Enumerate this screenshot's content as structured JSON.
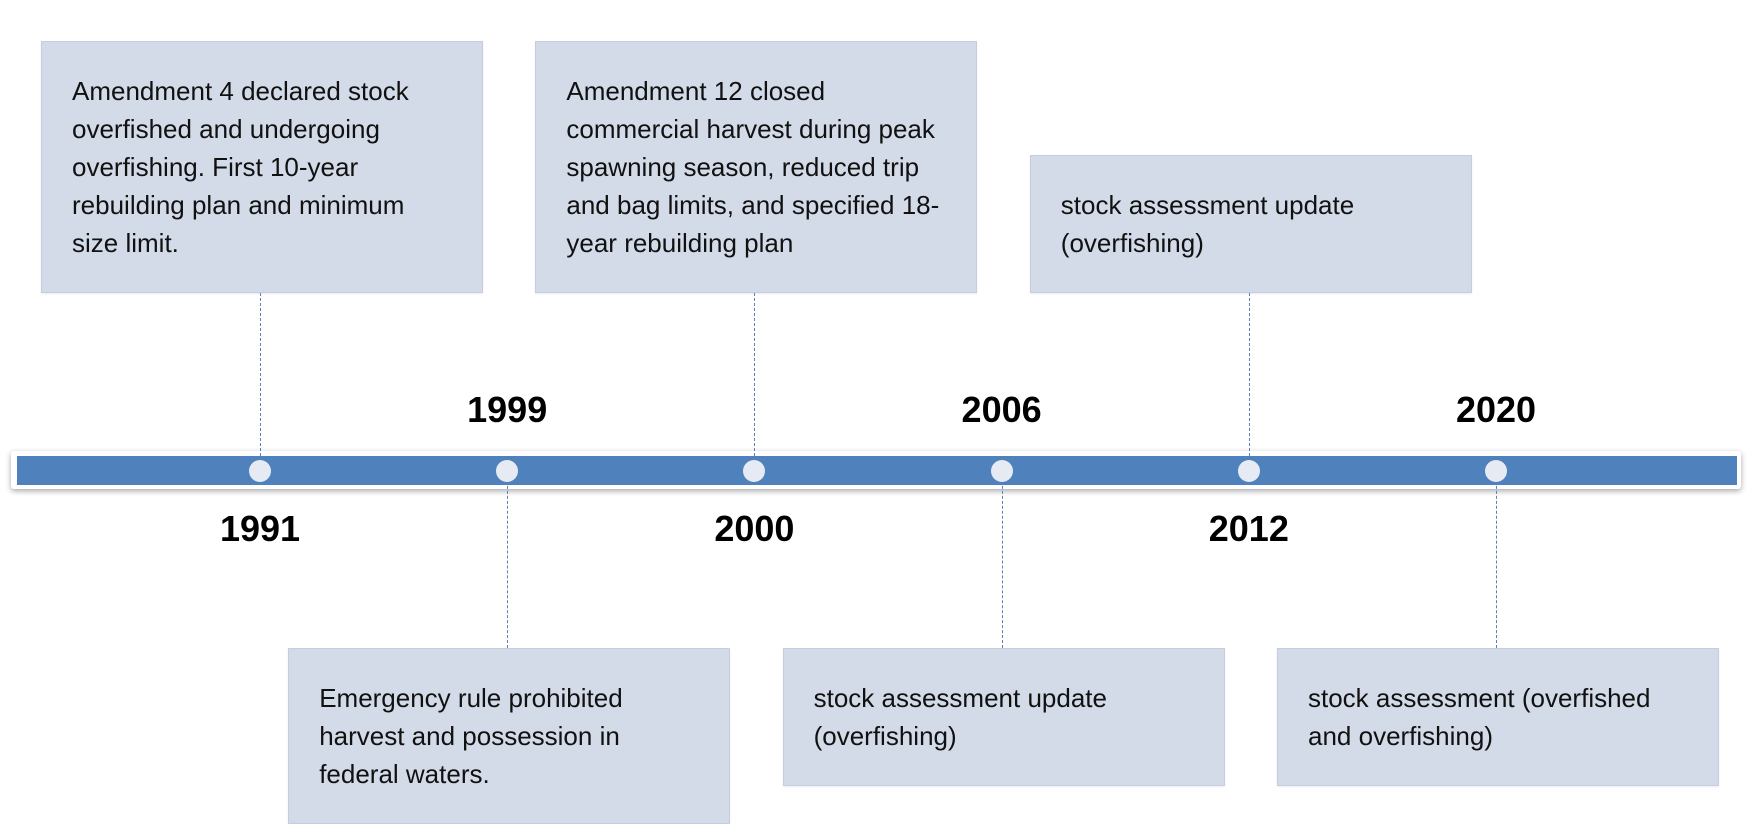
{
  "events": [
    {
      "year": "1991",
      "text": "Amendment 4 declared stock overfished and undergoing overfishing. First 10-year rebuilding plan and minimum size limit."
    },
    {
      "year": "1999",
      "text": "Emergency rule prohibited harvest and possession in federal waters."
    },
    {
      "year": "2000",
      "text": "Amendment 12 closed commercial harvest during peak spawning season, reduced trip and bag limits, and specified 18-year rebuilding plan"
    },
    {
      "year": "2006",
      "text": "stock assessment update (overfishing)"
    },
    {
      "year": "2012",
      "text": "stock assessment update (overfishing)"
    },
    {
      "year": "2020",
      "text": "stock assessment (overfished and overfishing)"
    }
  ]
}
